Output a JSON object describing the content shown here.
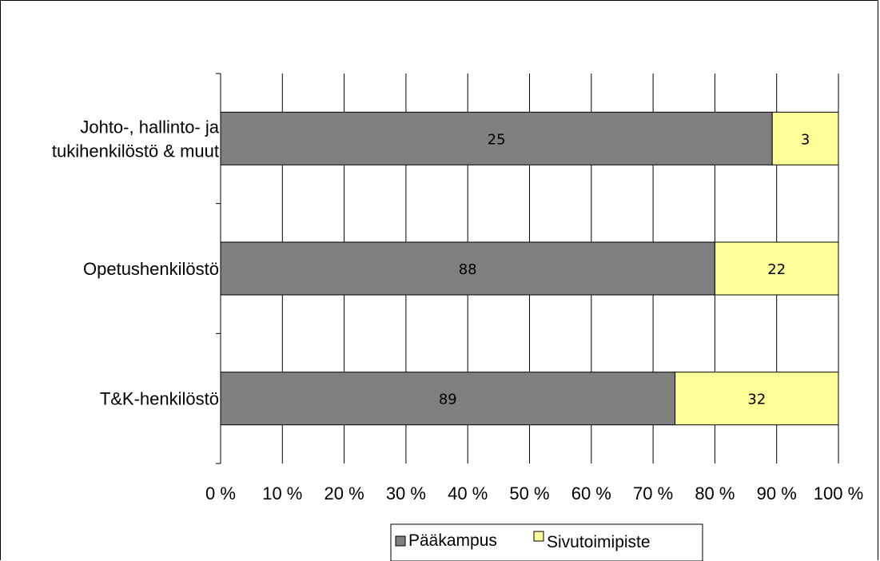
{
  "chart_data": {
    "type": "bar",
    "orientation": "horizontal",
    "stacked": "percent",
    "categories": [
      "Johto-, hallinto- ja tukihenkilöstö & muut",
      "Opetushenkilöstö",
      "T&K-henkilöstö"
    ],
    "category_lines": [
      [
        "Johto-, hallinto- ja",
        "tukihenkilöstö & muut"
      ],
      [
        "Opetushenkilöstö"
      ],
      [
        "T&K-henkilöstö"
      ]
    ],
    "series": [
      {
        "name": "Pääkampus",
        "values": [
          25,
          88,
          89
        ],
        "color": "#808080"
      },
      {
        "name": "Sivutoimipiste",
        "values": [
          3,
          22,
          32
        ],
        "color": "#FFFF99"
      }
    ],
    "x_ticks": [
      "0 %",
      "10 %",
      "20 %",
      "30 %",
      "40 %",
      "50 %",
      "60 %",
      "70 %",
      "80 %",
      "90 %",
      "100 %"
    ],
    "xlim": [
      0,
      100
    ],
    "grid": true,
    "legend_position": "bottom"
  }
}
